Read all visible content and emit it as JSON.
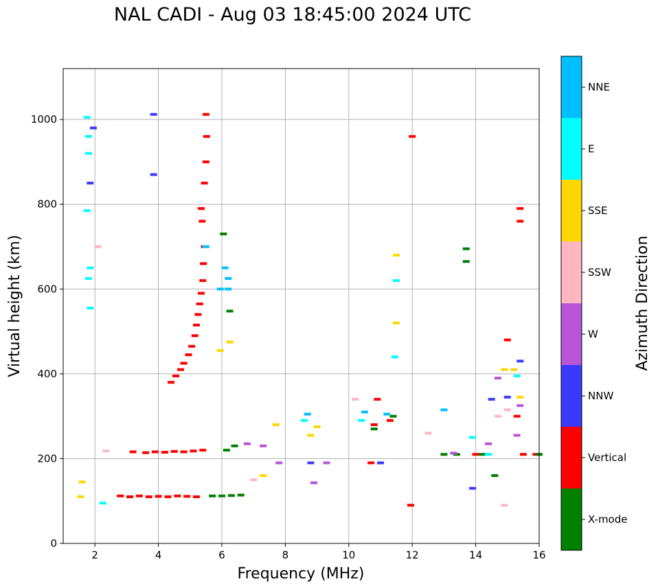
{
  "chart_data": {
    "type": "scatter",
    "title": "NAL CADI - Aug 03 18:45:00 2024 UTC",
    "xlabel": "Frequency (MHz)",
    "ylabel": "Virtual height (km)",
    "xlim": [
      1,
      16
    ],
    "ylim": [
      0,
      1120
    ],
    "xticks": [
      "2",
      "4",
      "6",
      "8",
      "10",
      "12",
      "14",
      "16"
    ],
    "yticks": [
      "0",
      "200",
      "400",
      "600",
      "800",
      "1000"
    ],
    "grid": true,
    "colorbar": {
      "label": "Azimuth Direction",
      "entries": [
        {
          "name": "X-mode",
          "color": "#008000"
        },
        {
          "name": "Vertical",
          "color": "#ff0000"
        },
        {
          "name": "NNW",
          "color": "#3a3aff"
        },
        {
          "name": "W",
          "color": "#b856d7"
        },
        {
          "name": "SSW",
          "color": "#ffb6c1"
        },
        {
          "name": "SSE",
          "color": "#ffd700"
        },
        {
          "name": "E",
          "color": "#00ffff"
        },
        {
          "name": "NNE",
          "color": "#00bfff"
        }
      ]
    },
    "series": [
      {
        "name": "Vertical",
        "color": "#ff0000",
        "points": [
          [
            2.8,
            112
          ],
          [
            3.1,
            110
          ],
          [
            3.4,
            112
          ],
          [
            3.7,
            110
          ],
          [
            4.0,
            111
          ],
          [
            4.3,
            110
          ],
          [
            4.6,
            112
          ],
          [
            4.9,
            111
          ],
          [
            5.2,
            110
          ],
          [
            3.2,
            216
          ],
          [
            3.6,
            214
          ],
          [
            3.9,
            216
          ],
          [
            4.2,
            215
          ],
          [
            4.5,
            217
          ],
          [
            4.8,
            216
          ],
          [
            5.1,
            218
          ],
          [
            5.4,
            220
          ],
          [
            4.4,
            380
          ],
          [
            4.55,
            395
          ],
          [
            4.7,
            410
          ],
          [
            4.8,
            425
          ],
          [
            4.95,
            445
          ],
          [
            5.05,
            465
          ],
          [
            5.15,
            490
          ],
          [
            5.2,
            515
          ],
          [
            5.25,
            540
          ],
          [
            5.3,
            565
          ],
          [
            5.35,
            590
          ],
          [
            5.4,
            620
          ],
          [
            5.42,
            660
          ],
          [
            5.45,
            700
          ],
          [
            5.38,
            760
          ],
          [
            5.35,
            790
          ],
          [
            5.45,
            850
          ],
          [
            5.5,
            900
          ],
          [
            5.52,
            960
          ],
          [
            5.5,
            1012
          ],
          [
            10.7,
            190
          ],
          [
            11.0,
            190
          ],
          [
            10.8,
            280
          ],
          [
            11.3,
            290
          ],
          [
            10.9,
            340
          ],
          [
            12.0,
            960
          ],
          [
            11.95,
            90
          ],
          [
            14.0,
            210
          ],
          [
            15.5,
            210
          ],
          [
            15.9,
            210
          ],
          [
            15.0,
            480
          ],
          [
            15.4,
            790
          ],
          [
            15.4,
            760
          ],
          [
            15.3,
            300
          ]
        ]
      },
      {
        "name": "X-mode",
        "color": "#008000",
        "points": [
          [
            5.7,
            112
          ],
          [
            6.0,
            112
          ],
          [
            6.3,
            113
          ],
          [
            6.6,
            114
          ],
          [
            6.15,
            220
          ],
          [
            6.4,
            230
          ],
          [
            6.25,
            548
          ],
          [
            6.05,
            730
          ],
          [
            10.8,
            270
          ],
          [
            11.4,
            300
          ],
          [
            13.0,
            210
          ],
          [
            13.4,
            210
          ],
          [
            13.7,
            695
          ],
          [
            13.7,
            665
          ],
          [
            14.2,
            210
          ],
          [
            14.6,
            160
          ],
          [
            16.0,
            210
          ]
        ]
      },
      {
        "name": "NNW",
        "color": "#3a3aff",
        "points": [
          [
            3.85,
            1012
          ],
          [
            3.85,
            870
          ],
          [
            1.85,
            850
          ],
          [
            1.95,
            980
          ],
          [
            8.8,
            190
          ],
          [
            11.0,
            190
          ],
          [
            13.9,
            130
          ],
          [
            15.0,
            345
          ],
          [
            14.5,
            340
          ],
          [
            15.4,
            430
          ]
        ]
      },
      {
        "name": "W",
        "color": "#b856d7",
        "points": [
          [
            6.8,
            235
          ],
          [
            7.3,
            230
          ],
          [
            7.8,
            190
          ],
          [
            8.9,
            143
          ],
          [
            9.3,
            190
          ],
          [
            13.3,
            213
          ],
          [
            14.4,
            235
          ],
          [
            14.7,
            390
          ],
          [
            15.3,
            255
          ],
          [
            15.4,
            325
          ]
        ]
      },
      {
        "name": "SSW",
        "color": "#ffb6c1",
        "points": [
          [
            2.1,
            700
          ],
          [
            2.35,
            218
          ],
          [
            7.0,
            150
          ],
          [
            10.2,
            340
          ],
          [
            12.5,
            260
          ],
          [
            14.9,
            90
          ],
          [
            15.0,
            315
          ],
          [
            14.7,
            300
          ]
        ]
      },
      {
        "name": "SSE",
        "color": "#ffd700",
        "points": [
          [
            1.55,
            110
          ],
          [
            1.6,
            145
          ],
          [
            7.3,
            160
          ],
          [
            7.7,
            280
          ],
          [
            8.8,
            255
          ],
          [
            9.0,
            275
          ],
          [
            11.5,
            520
          ],
          [
            11.5,
            680
          ],
          [
            6.25,
            475
          ],
          [
            5.95,
            455
          ],
          [
            14.9,
            410
          ],
          [
            15.2,
            410
          ],
          [
            15.4,
            345
          ]
        ]
      },
      {
        "name": "E",
        "color": "#00ffff",
        "points": [
          [
            1.75,
            1005
          ],
          [
            1.8,
            960
          ],
          [
            1.8,
            920
          ],
          [
            1.75,
            785
          ],
          [
            1.85,
            650
          ],
          [
            1.8,
            625
          ],
          [
            1.85,
            555
          ],
          [
            2.25,
            95
          ],
          [
            8.6,
            290
          ],
          [
            10.4,
            290
          ],
          [
            11.45,
            440
          ],
          [
            11.5,
            620
          ],
          [
            13.9,
            250
          ],
          [
            14.4,
            210
          ],
          [
            15.3,
            395
          ]
        ]
      },
      {
        "name": "NNE",
        "color": "#00bfff",
        "points": [
          [
            6.1,
            650
          ],
          [
            6.2,
            625
          ],
          [
            6.2,
            600
          ],
          [
            5.5,
            700
          ],
          [
            5.95,
            600
          ],
          [
            8.7,
            305
          ],
          [
            10.5,
            310
          ],
          [
            11.2,
            305
          ],
          [
            13.0,
            315
          ]
        ]
      }
    ]
  }
}
